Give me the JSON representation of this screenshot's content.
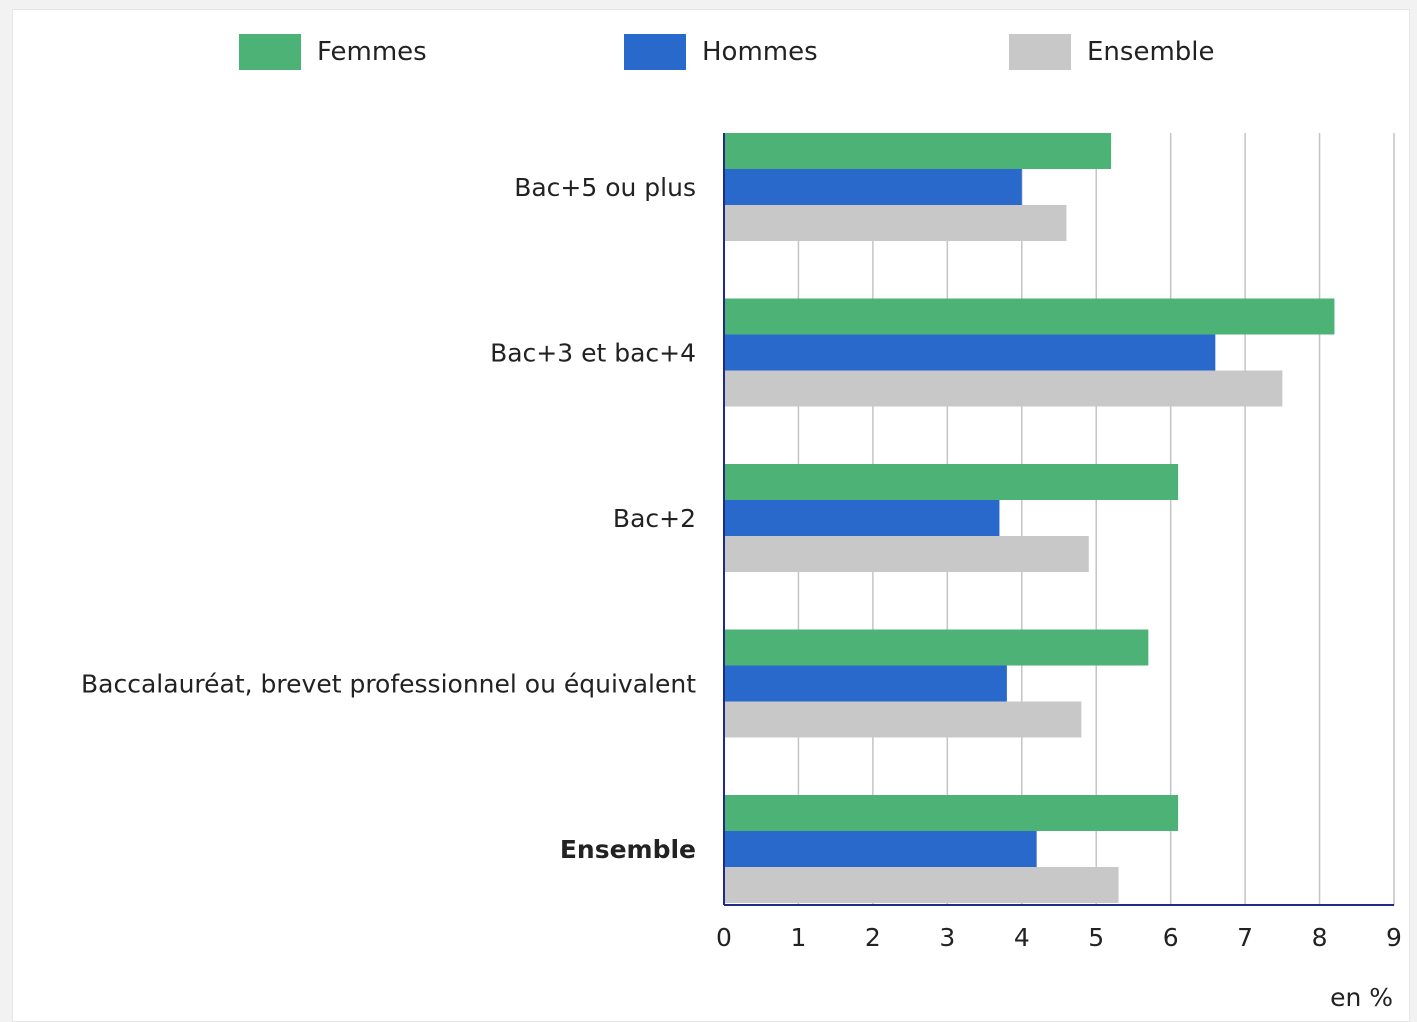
{
  "chart_data": {
    "type": "bar",
    "orientation": "horizontal",
    "categories": [
      "Bac+5 ou plus",
      "Bac+3 et bac+4",
      "Bac+2",
      "Baccalauréat, brevet professionnel ou équivalent",
      "Ensemble"
    ],
    "series": [
      {
        "name": "Femmes",
        "color": "#4cb276",
        "values": [
          5.2,
          8.2,
          6.1,
          5.7,
          6.1
        ]
      },
      {
        "name": "Hommes",
        "color": "#2a69cc",
        "values": [
          4.0,
          6.6,
          3.7,
          3.8,
          4.2
        ]
      },
      {
        "name": "Ensemble",
        "color": "#c8c8c8",
        "values": [
          4.6,
          7.5,
          4.9,
          4.8,
          5.3
        ]
      }
    ],
    "xlim": [
      0,
      9
    ],
    "xticks": [
      "0",
      "1",
      "2",
      "3",
      "4",
      "5",
      "6",
      "7",
      "8",
      "9"
    ],
    "xlabel": "en %",
    "grid": true,
    "legend_position": "top",
    "bold_category": "Ensemble"
  }
}
